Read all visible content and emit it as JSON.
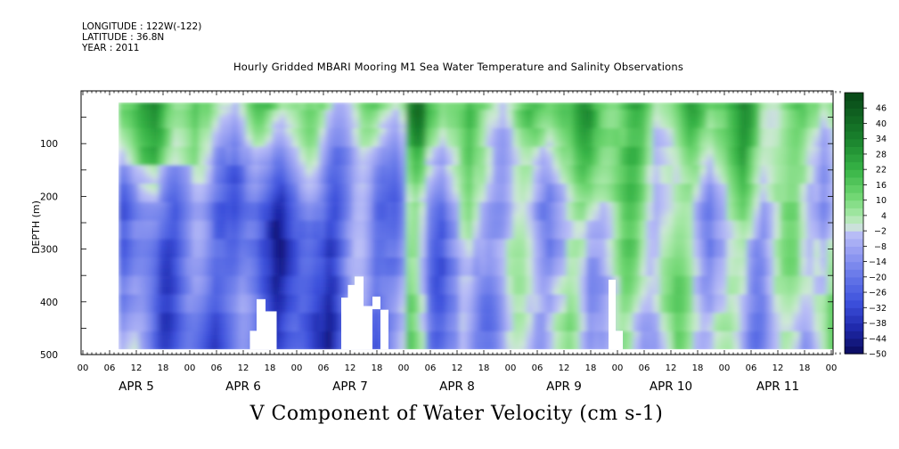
{
  "meta": {
    "longitude": "LONGITUDE : 122W(-122)",
    "latitude": "LATITUDE : 36.8N",
    "year": "YEAR : 2011"
  },
  "title": "Hourly Gridded MBARI Mooring M1 Sea Water Temperature and Salinity Observations",
  "caption": "V Component of Water Velocity (cm s-1)",
  "chart_data": {
    "type": "heatmap",
    "title": "Hourly Gridded MBARI Mooring M1 Sea Water Temperature and Salinity Observations",
    "xlabel": "",
    "ylabel": "DEPTH (m)",
    "y_reversed": true,
    "ylim": [
      0,
      500
    ],
    "y_ticks": [
      100,
      200,
      300,
      400,
      500
    ],
    "x_unit": "hours from 2011-04-05 00:00",
    "xlim": [
      0,
      170
    ],
    "x_hour_ticks": [
      "00",
      "06",
      "12",
      "18",
      "00",
      "06",
      "12",
      "18",
      "00",
      "06",
      "12",
      "18",
      "00",
      "06",
      "12",
      "18",
      "00",
      "06",
      "12",
      "18",
      "00",
      "06",
      "12",
      "18",
      "00",
      "06",
      "12",
      "18",
      "00"
    ],
    "day_labels": [
      "APR 5",
      "APR 6",
      "APR 7",
      "APR 8",
      "APR 9",
      "APR 10",
      "APR 11"
    ],
    "data_extent": {
      "x_start_hour": 8,
      "depth_top": 22,
      "depth_bottom": 490
    },
    "colorbar": {
      "label_values": [
        46,
        40,
        34,
        28,
        22,
        16,
        10,
        4,
        -2,
        -8,
        -14,
        -20,
        -26,
        -32,
        -38,
        -44,
        -50
      ],
      "range": [
        -50,
        52
      ]
    },
    "colorbar_colors": {
      "dark_green": "#0a4a14",
      "green": "#2fb03d",
      "light_green": "#8fe08a",
      "pale": "#c8ecc8",
      "lavender": "#b6b8f3",
      "mid_blue": "#6f7fe6",
      "blue": "#3d4fd6",
      "navy": "#0b0b5c"
    },
    "field_summary": [
      {
        "period": "APR 5",
        "value_near_surface": 8,
        "value_deep": -10
      },
      {
        "period": "APR 6",
        "value_near_surface": 10,
        "value_deep": -22
      },
      {
        "period": "APR 7",
        "value_near_surface": 6,
        "value_deep": -28
      },
      {
        "period": "APR 8",
        "value_near_surface": 10,
        "value_deep": -16
      },
      {
        "period": "APR 9",
        "value_near_surface": 14,
        "value_deep": -8
      },
      {
        "period": "APR 10",
        "value_near_surface": 18,
        "value_deep": 2
      },
      {
        "period": "APR 11",
        "value_near_surface": 14,
        "value_deep": -2
      }
    ]
  }
}
